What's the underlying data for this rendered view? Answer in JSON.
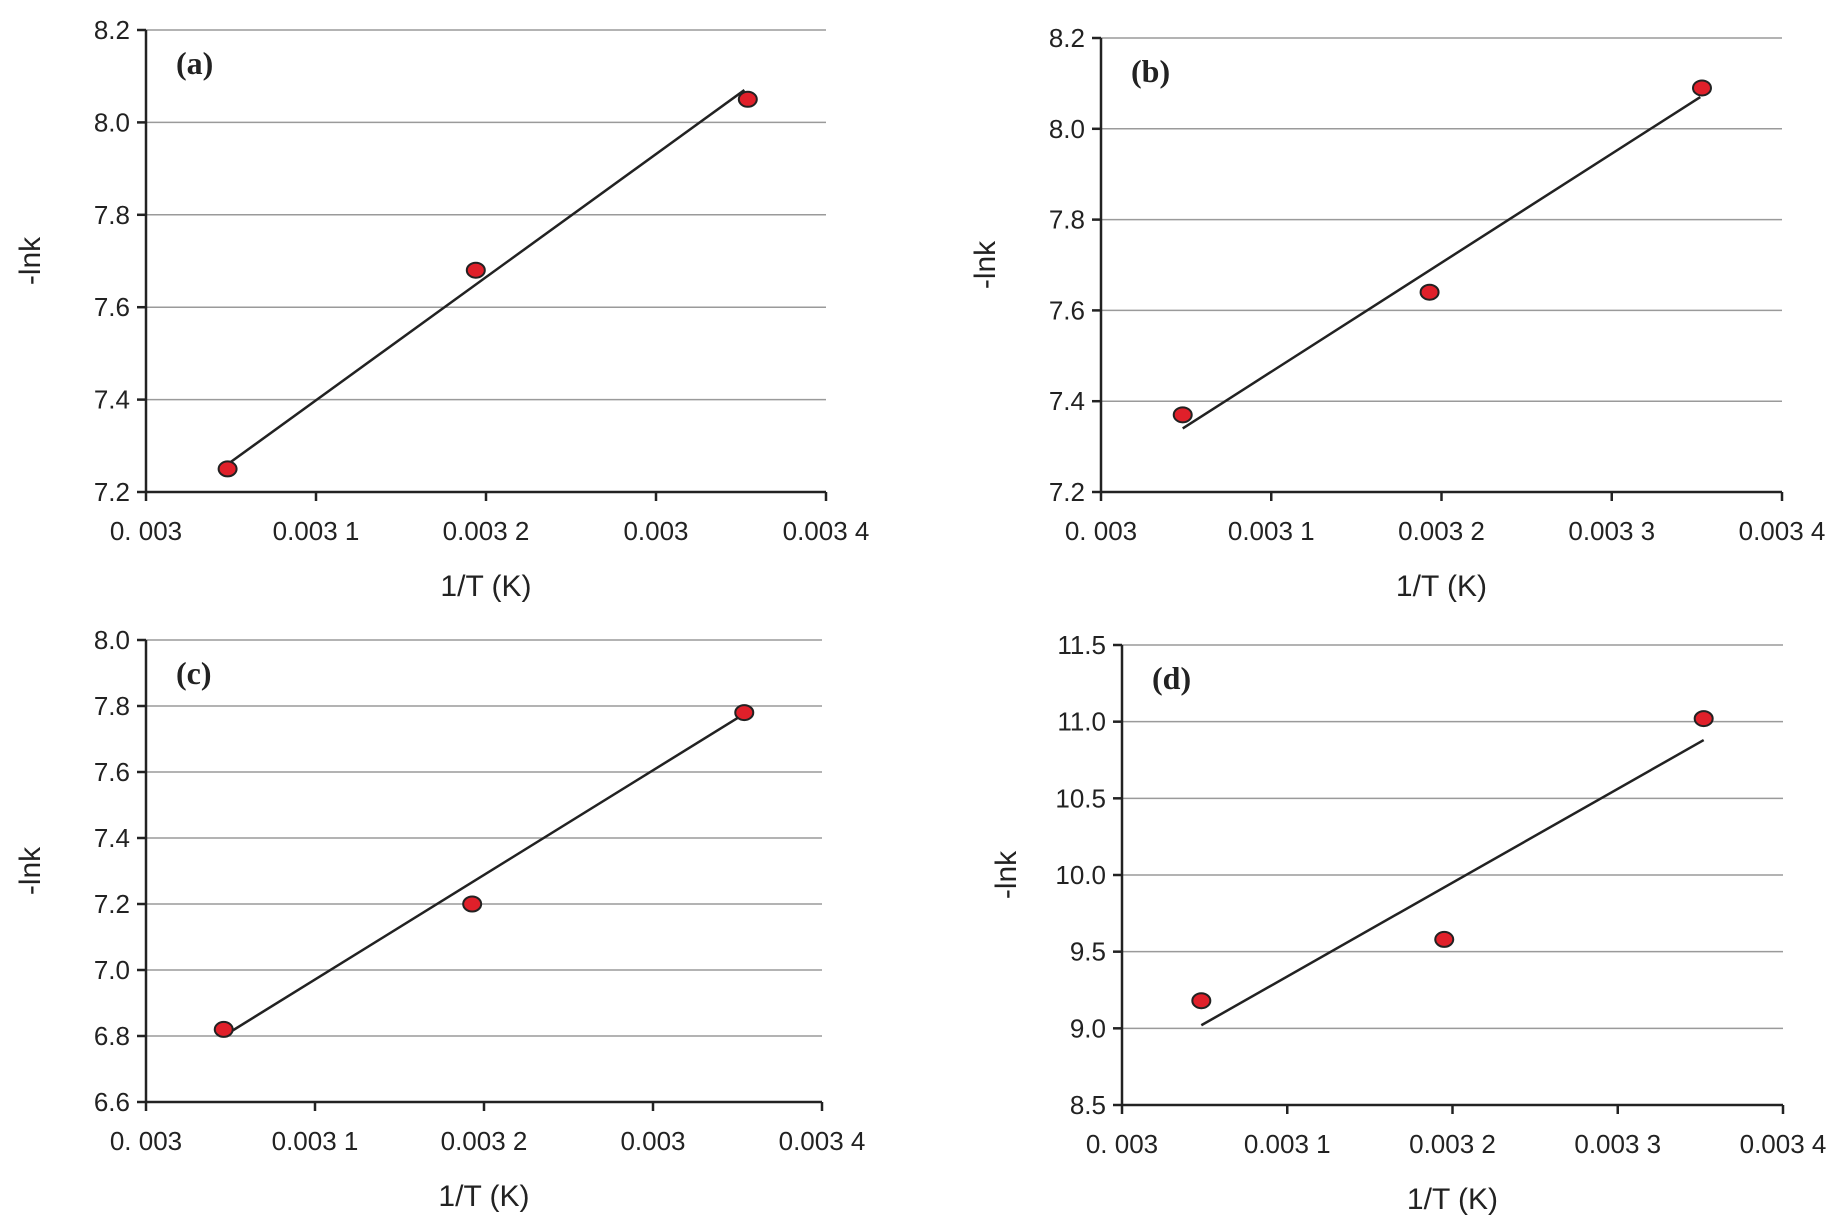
{
  "figure": {
    "colors": {
      "marker_fill": "#e0202a",
      "marker_stroke": "#222222",
      "line": "#222222",
      "grid": "#9a9a9a",
      "axis": "#222222"
    }
  },
  "chart_data": [
    {
      "type": "scatter",
      "panel_label": "(a)",
      "xlabel": "1/T (K)",
      "ylabel": "-lnk",
      "xlim": [
        0.003,
        0.0034
      ],
      "ylim": [
        7.2,
        8.2
      ],
      "x_tick_labels": [
        "0. 003",
        "0.003 1",
        "0.003 2",
        "0.003",
        "0.003 4"
      ],
      "y_tick_labels": [
        "7.2",
        "7.4",
        "7.6",
        "7.8",
        "8.0",
        "8.2"
      ],
      "grid": true,
      "points": {
        "x": [
          0.003048,
          0.003194,
          0.003354
        ],
        "y": [
          7.25,
          7.68,
          8.05
        ]
      },
      "fit_line": {
        "x": [
          0.003048,
          0.003352
        ],
        "y": [
          7.26,
          8.07
        ]
      }
    },
    {
      "type": "scatter",
      "panel_label": "(b)",
      "xlabel": "1/T (K)",
      "ylabel": "-lnk",
      "xlim": [
        0.003,
        0.0034
      ],
      "ylim": [
        7.2,
        8.2
      ],
      "x_tick_labels": [
        "0. 003",
        "0.003 1",
        "0.003 2",
        "0.003 3",
        "0.003 4"
      ],
      "y_tick_labels": [
        "7.2",
        "7.4",
        "7.6",
        "7.8",
        "8.0",
        "8.2"
      ],
      "grid": true,
      "points": {
        "x": [
          0.003048,
          0.003193,
          0.003353
        ],
        "y": [
          7.37,
          7.64,
          8.09
        ]
      },
      "fit_line": {
        "x": [
          0.003048,
          0.003352
        ],
        "y": [
          7.34,
          8.07
        ]
      }
    },
    {
      "type": "scatter",
      "panel_label": "(c)",
      "xlabel": "1/T (K)",
      "ylabel": "-lnk",
      "xlim": [
        0.003,
        0.0034
      ],
      "ylim": [
        6.6,
        8.0
      ],
      "x_tick_labels": [
        "0. 003",
        "0.003 1",
        "0.003 2",
        "0.003",
        "0.003 4"
      ],
      "y_tick_labels": [
        "6.6",
        "6.8",
        "7.0",
        "7.2",
        "7.4",
        "7.6",
        "7.8",
        "8.0"
      ],
      "grid": true,
      "points": {
        "x": [
          0.003046,
          0.003193,
          0.003354
        ],
        "y": [
          6.82,
          7.2,
          7.78
        ]
      },
      "fit_line": {
        "x": [
          0.003046,
          0.003352
        ],
        "y": [
          6.8,
          7.77
        ]
      }
    },
    {
      "type": "scatter",
      "panel_label": "(d)",
      "xlabel": "1/T (K)",
      "ylabel": "-lnk",
      "xlim": [
        0.003,
        0.0034
      ],
      "ylim": [
        8.5,
        11.5
      ],
      "x_tick_labels": [
        "0. 003",
        "0.003 1",
        "0.003 2",
        "0.003 3",
        "0.003 4"
      ],
      "y_tick_labels": [
        "8.5",
        "9.0",
        "9.5",
        "10.0",
        "10.5",
        "11.0",
        "11.5"
      ],
      "grid": true,
      "points": {
        "x": [
          0.003048,
          0.003195,
          0.003352
        ],
        "y": [
          9.18,
          9.58,
          11.02
        ]
      },
      "fit_line": {
        "x": [
          0.003048,
          0.003352
        ],
        "y": [
          9.02,
          10.88
        ]
      }
    }
  ]
}
